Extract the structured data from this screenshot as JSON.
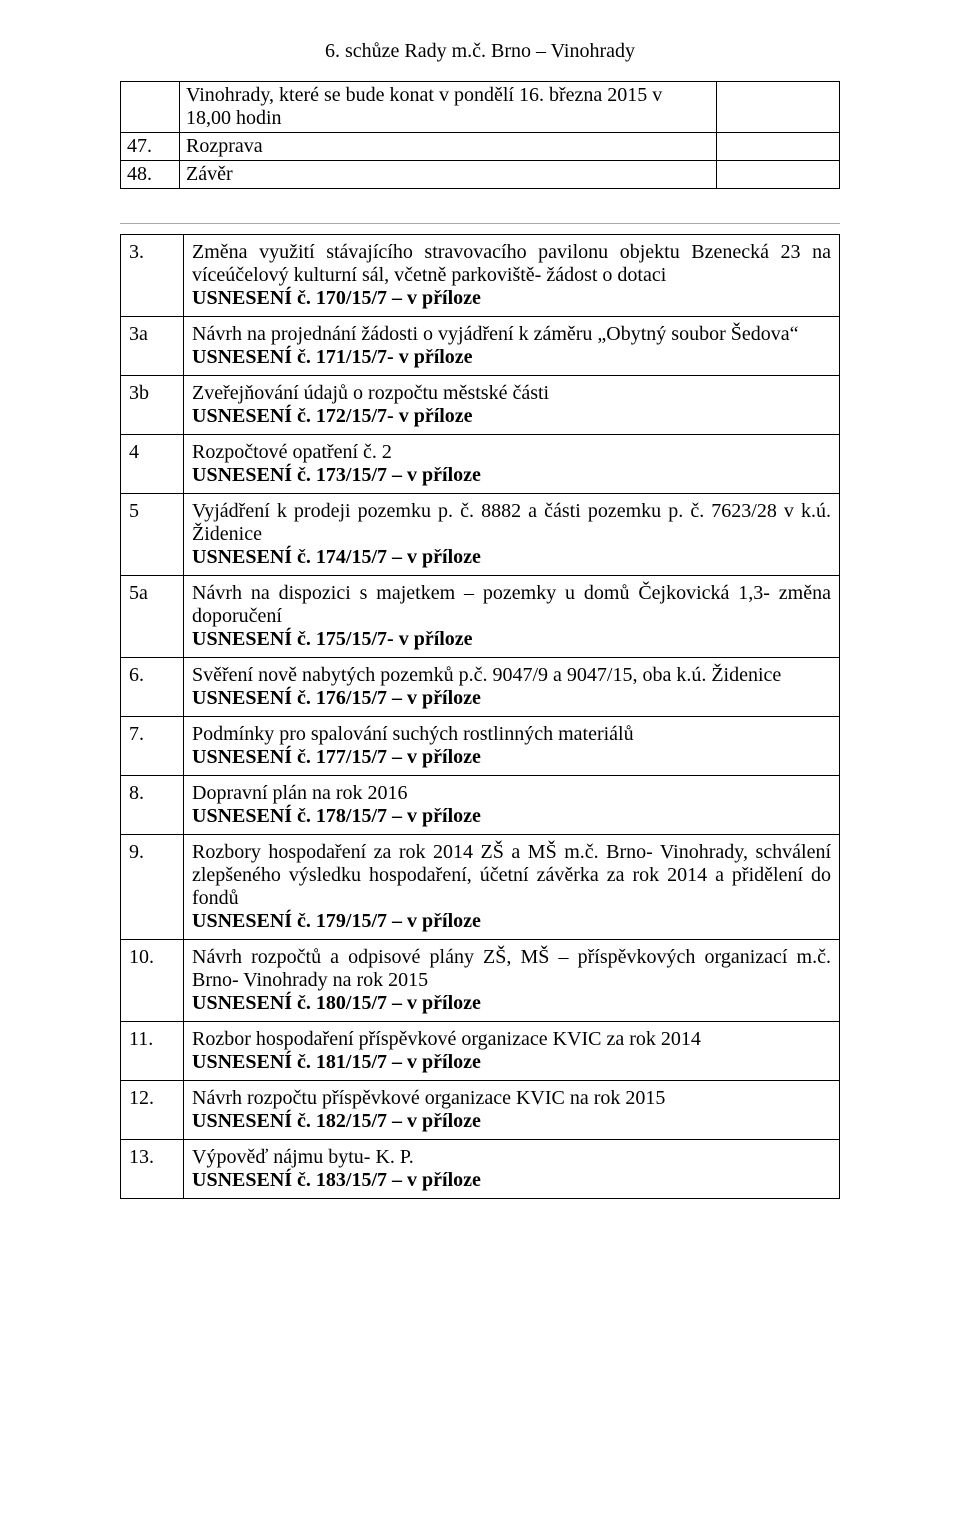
{
  "header": {
    "title": "6. schůze Rady m.č. Brno – Vinohrady"
  },
  "top_table": {
    "rows": [
      {
        "num": "",
        "text": "Vinohrady, které se bude konat v pondělí 16. března 2015 v 18,00 hodin"
      },
      {
        "num": "47.",
        "text": "Rozprava"
      },
      {
        "num": "48.",
        "text": "Závěr"
      }
    ]
  },
  "items": [
    {
      "num": "3.",
      "desc": "Změna využití stávajícího stravovacího pavilonu objektu Bzenecká 23 na víceúčelový kulturní sál, včetně parkoviště- žádost o dotaci",
      "res": "USNESENÍ č. 170/15/7 – v příloze"
    },
    {
      "num": "3a",
      "desc": "Návrh na projednání žádosti o vyjádření k záměru „Obytný soubor Šedova“",
      "res": "USNESENÍ č. 171/15/7- v příloze"
    },
    {
      "num": "3b",
      "desc": "Zveřejňování údajů o rozpočtu městské části",
      "res": "USNESENÍ č. 172/15/7- v příloze"
    },
    {
      "num": "4",
      "desc": "Rozpočtové opatření č. 2",
      "res": "USNESENÍ č. 173/15/7 – v příloze"
    },
    {
      "num": "5",
      "desc": "Vyjádření k prodeji pozemku p. č. 8882 a části pozemku p. č. 7623/28 v k.ú. Židenice",
      "res": "USNESENÍ č. 174/15/7 – v příloze"
    },
    {
      "num": "5a",
      "desc": "Návrh na dispozici s majetkem – pozemky u domů Čejkovická 1,3- změna doporučení",
      "res": "USNESENÍ č. 175/15/7- v příloze"
    },
    {
      "num": "6.",
      "desc": "Svěření nově nabytých pozemků p.č. 9047/9 a 9047/15, oba k.ú. Židenice",
      "res": "USNESENÍ č. 176/15/7 – v příloze"
    },
    {
      "num": "7.",
      "desc": "Podmínky pro spalování suchých rostlinných materiálů",
      "res": "USNESENÍ č. 177/15/7 – v příloze"
    },
    {
      "num": "8.",
      "desc": "Dopravní plán na rok 2016",
      "res": "USNESENÍ č. 178/15/7 – v příloze"
    },
    {
      "num": "9.",
      "desc": "Rozbory hospodaření za rok 2014 ZŠ a MŠ m.č. Brno- Vinohrady, schválení zlepšeného výsledku hospodaření, účetní závěrka za rok 2014 a přidělení do fondů",
      "res": "USNESENÍ č. 179/15/7 – v příloze"
    },
    {
      "num": "10.",
      "desc": "Návrh rozpočtů a odpisové plány ZŠ, MŠ – příspěvkových organizací m.č. Brno- Vinohrady na rok 2015",
      "res": "USNESENÍ č. 180/15/7 – v příloze"
    },
    {
      "num": "11.",
      "desc": "Rozbor hospodaření příspěvkové organizace KVIC za rok 2014",
      "res": "USNESENÍ č. 181/15/7 – v příloze"
    },
    {
      "num": "12.",
      "desc": "Návrh rozpočtu příspěvkové organizace KVIC na rok 2015",
      "res": "USNESENÍ č. 182/15/7 – v příloze"
    },
    {
      "num": "13.",
      "desc": "Výpověď nájmu bytu- K. P.",
      "res": "USNESENÍ č. 183/15/7 – v příloze"
    }
  ]
}
